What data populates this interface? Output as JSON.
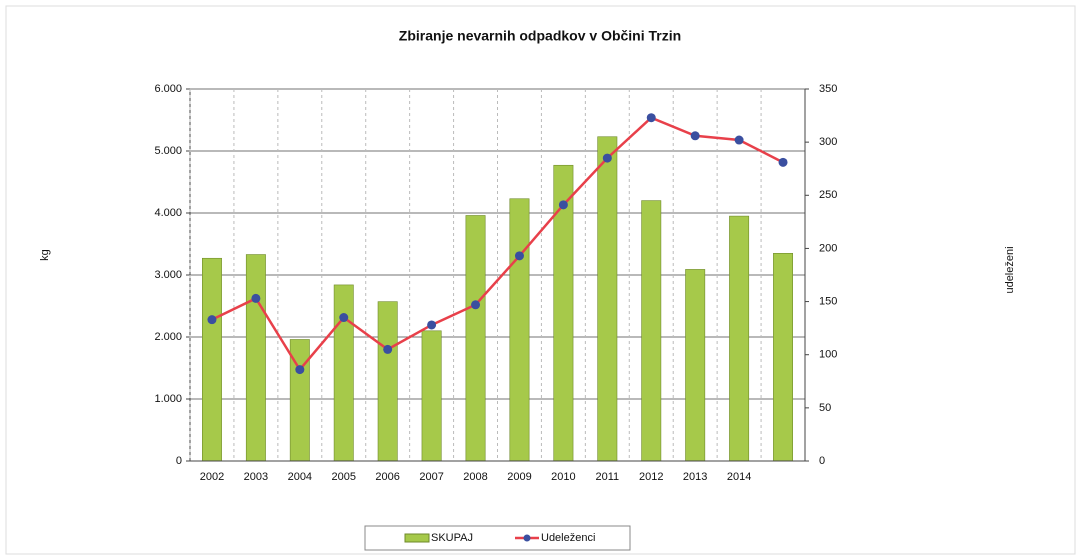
{
  "chart_data": {
    "type": "bar_line",
    "title": "Zbiranje nevarnih odpadkov v Občini Trzin",
    "ylabel": "kg",
    "y2label": "udeleženi",
    "categories": [
      "2002",
      "2003",
      "2004",
      "2005",
      "2006",
      "2007",
      "2008",
      "2009",
      "2010",
      "2011",
      "2012",
      "2013",
      "2014",
      null
    ],
    "series": [
      {
        "name": "SKUPAJ",
        "type": "bar",
        "color": "#a6c94a",
        "values": [
          3270,
          3330,
          1960,
          2840,
          2570,
          2100,
          3960,
          4230,
          4770,
          5230,
          4200,
          3090,
          3950,
          3350
        ]
      },
      {
        "name": "Udeleženci",
        "type": "line",
        "axis": "y2",
        "color": "#e8404a",
        "marker_color": "#3a4fa0",
        "values": [
          133,
          153,
          86,
          135,
          105,
          128,
          147,
          193,
          241,
          285,
          323,
          306,
          302,
          281
        ]
      }
    ],
    "ylim": [
      0,
      6000
    ],
    "yticks": [
      0,
      {
        "value": 1000,
        "label": "1.000"
      },
      {
        "value": 2000,
        "label": "2.000"
      },
      {
        "value": 3000,
        "label": "3.000"
      },
      {
        "value": 4000,
        "label": "4.000"
      },
      {
        "value": 5000,
        "label": "5.000"
      },
      {
        "value": 6000,
        "label": "6.000"
      }
    ],
    "y2lim": [
      0,
      350
    ],
    "y2ticks": [
      0,
      50,
      100,
      150,
      200,
      250,
      300,
      350
    ],
    "grid": true,
    "legend": "bottom"
  }
}
